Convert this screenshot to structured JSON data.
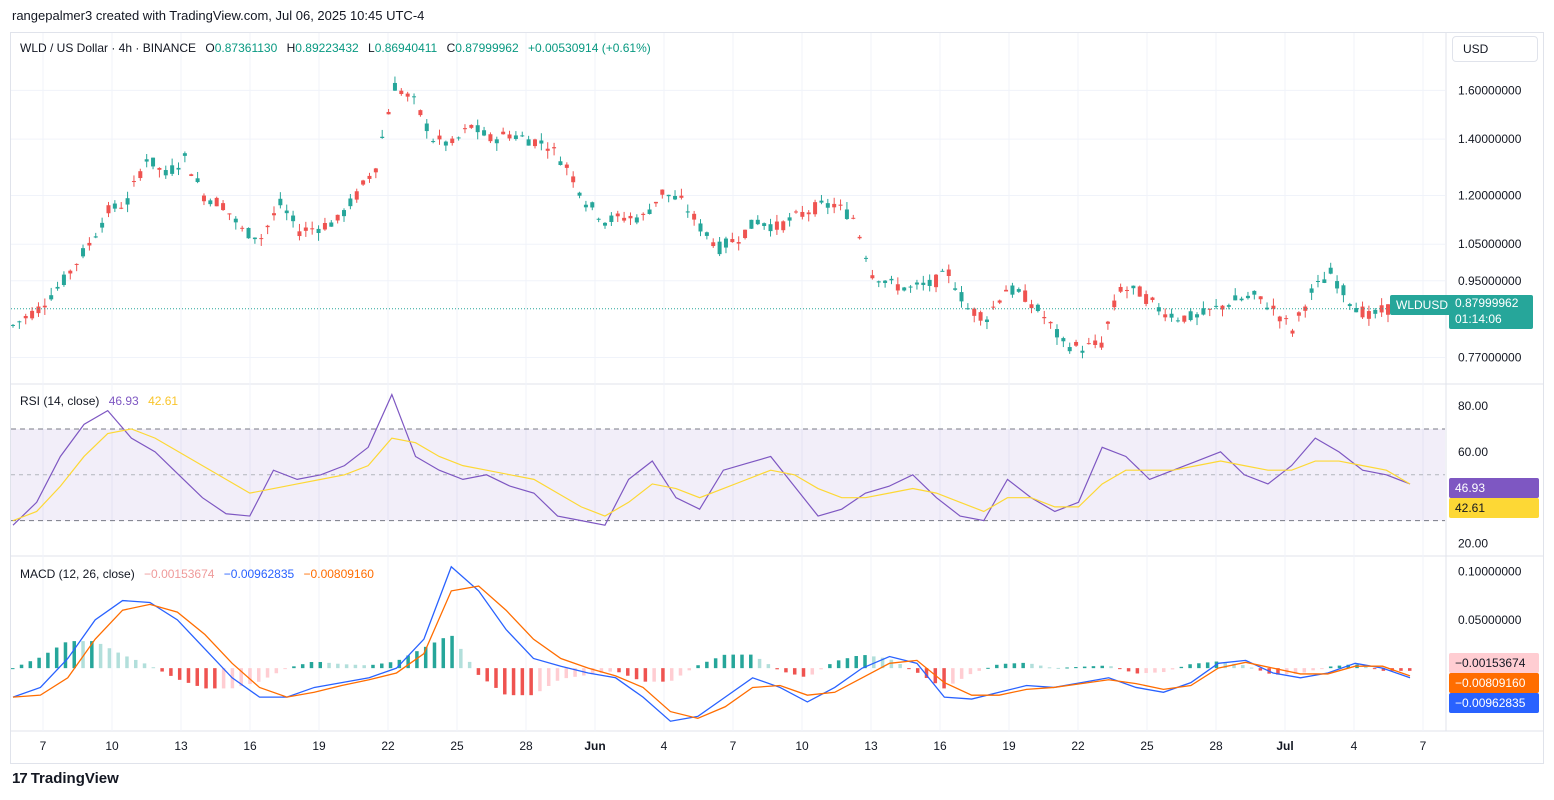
{
  "header": {
    "attribution": "rangepalmer3 created with TradingView.com, Jul 06, 2025 10:45 UTC-4"
  },
  "legend": {
    "symbol": "WLD / US Dollar · 4h · BINANCE",
    "o_label": "O",
    "o": "0.87361130",
    "h_label": "H",
    "h": "0.89223432",
    "l_label": "L",
    "l": "0.86940411",
    "c_label": "C",
    "c": "0.87999962",
    "change": "+0.00530914 (+0.61%)"
  },
  "currency_button": "USD",
  "price_tag": {
    "symbol": "WLDUSD",
    "price": "0.87999962",
    "countdown": "01:14:06"
  },
  "rsi_legend": {
    "label": "RSI (14, close)",
    "rsi": "46.93",
    "ma": "42.61"
  },
  "macd_legend": {
    "label": "MACD (12, 26, close)",
    "hist": "−0.00153674",
    "macd": "−0.00962835",
    "signal": "−0.00809160"
  },
  "rsi_tags": {
    "rsi": "46.93",
    "ma": "42.61"
  },
  "macd_tags": {
    "hist": "−0.00153674",
    "signal": "−0.00809160",
    "macd": "−0.00962835"
  },
  "footer": {
    "brand": "TradingView"
  },
  "colors": {
    "up": "#26a69a",
    "down": "#ef5350",
    "rsi": "#7e57c2",
    "rsi_ma": "#fdd835",
    "macd": "#2962ff",
    "signal": "#ff6d00",
    "hist_up": "#26a69a",
    "hist_up_light": "#b2dfdb",
    "hist_down": "#ef5350",
    "hist_down_light": "#ffcdd2"
  },
  "chart_data": [
    {
      "type": "candlestick",
      "title": "WLD / US Dollar · 4h · BINANCE",
      "x_tick_labels": [
        "7",
        "10",
        "13",
        "16",
        "19",
        "22",
        "25",
        "28",
        "Jun",
        "4",
        "7",
        "10",
        "13",
        "16",
        "19",
        "22",
        "25",
        "28",
        "Jul",
        "4",
        "7"
      ],
      "y_tick_labels": [
        "1.60000000",
        "1.40000000",
        "1.20000000",
        "1.05000000",
        "0.95000000",
        "0.77000000"
      ],
      "y_scale": "log",
      "y_range": [
        0.72,
        1.72
      ],
      "last_price": 0.87999962,
      "close_path": [
        {
          "x": 0,
          "y": 0.84
        },
        {
          "x": 4,
          "y": 0.88
        },
        {
          "x": 8,
          "y": 0.95
        },
        {
          "x": 12,
          "y": 1.05
        },
        {
          "x": 15,
          "y": 1.15
        },
        {
          "x": 18,
          "y": 1.18
        },
        {
          "x": 21,
          "y": 1.33
        },
        {
          "x": 24,
          "y": 1.27
        },
        {
          "x": 27,
          "y": 1.33
        },
        {
          "x": 30,
          "y": 1.2
        },
        {
          "x": 33,
          "y": 1.17
        },
        {
          "x": 36,
          "y": 1.09
        },
        {
          "x": 39,
          "y": 1.07
        },
        {
          "x": 42,
          "y": 1.17
        },
        {
          "x": 45,
          "y": 1.09
        },
        {
          "x": 48,
          "y": 1.1
        },
        {
          "x": 51,
          "y": 1.12
        },
        {
          "x": 54,
          "y": 1.2
        },
        {
          "x": 57,
          "y": 1.3
        },
        {
          "x": 60,
          "y": 1.62
        },
        {
          "x": 63,
          "y": 1.55
        },
        {
          "x": 66,
          "y": 1.4
        },
        {
          "x": 69,
          "y": 1.38
        },
        {
          "x": 72,
          "y": 1.45
        },
        {
          "x": 75,
          "y": 1.4
        },
        {
          "x": 78,
          "y": 1.42
        },
        {
          "x": 81,
          "y": 1.4
        },
        {
          "x": 84,
          "y": 1.38
        },
        {
          "x": 87,
          "y": 1.3
        },
        {
          "x": 90,
          "y": 1.18
        },
        {
          "x": 93,
          "y": 1.12
        },
        {
          "x": 96,
          "y": 1.13
        },
        {
          "x": 99,
          "y": 1.13
        },
        {
          "x": 102,
          "y": 1.21
        },
        {
          "x": 105,
          "y": 1.18
        },
        {
          "x": 108,
          "y": 1.1
        },
        {
          "x": 111,
          "y": 1.04
        },
        {
          "x": 114,
          "y": 1.07
        },
        {
          "x": 117,
          "y": 1.12
        },
        {
          "x": 120,
          "y": 1.1
        },
        {
          "x": 123,
          "y": 1.13
        },
        {
          "x": 126,
          "y": 1.16
        },
        {
          "x": 129,
          "y": 1.17
        },
        {
          "x": 132,
          "y": 1.13
        },
        {
          "x": 135,
          "y": 0.97
        },
        {
          "x": 138,
          "y": 0.94
        },
        {
          "x": 141,
          "y": 0.93
        },
        {
          "x": 144,
          "y": 0.94
        },
        {
          "x": 147,
          "y": 0.97
        },
        {
          "x": 150,
          "y": 0.88
        },
        {
          "x": 153,
          "y": 0.86
        },
        {
          "x": 156,
          "y": 0.93
        },
        {
          "x": 159,
          "y": 0.91
        },
        {
          "x": 162,
          "y": 0.86
        },
        {
          "x": 165,
          "y": 0.8
        },
        {
          "x": 168,
          "y": 0.79
        },
        {
          "x": 171,
          "y": 0.8
        },
        {
          "x": 174,
          "y": 0.93
        },
        {
          "x": 177,
          "y": 0.92
        },
        {
          "x": 180,
          "y": 0.88
        },
        {
          "x": 183,
          "y": 0.86
        },
        {
          "x": 186,
          "y": 0.86
        },
        {
          "x": 189,
          "y": 0.88
        },
        {
          "x": 192,
          "y": 0.9
        },
        {
          "x": 195,
          "y": 0.91
        },
        {
          "x": 198,
          "y": 0.88
        },
        {
          "x": 201,
          "y": 0.83
        },
        {
          "x": 204,
          "y": 0.92
        },
        {
          "x": 207,
          "y": 0.97
        },
        {
          "x": 210,
          "y": 0.9
        },
        {
          "x": 213,
          "y": 0.86
        },
        {
          "x": 216,
          "y": 0.88
        }
      ]
    },
    {
      "type": "line",
      "title": "RSI (14, close)",
      "y_tick_labels": [
        "80.00",
        "60.00",
        "20.00"
      ],
      "y_range": [
        15,
        87
      ],
      "bands": [
        70,
        30
      ],
      "series": [
        {
          "name": "RSI",
          "values": [
            28,
            38,
            58,
            72,
            78,
            66,
            60,
            50,
            40,
            33,
            32,
            52,
            48,
            50,
            54,
            62,
            85,
            58,
            52,
            48,
            50,
            45,
            42,
            32,
            30,
            28,
            48,
            56,
            40,
            35,
            52,
            55,
            58,
            45,
            32,
            35,
            42,
            45,
            50,
            40,
            32,
            30,
            48,
            40,
            34,
            38,
            62,
            58,
            48,
            52,
            56,
            60,
            50,
            46,
            54,
            66,
            60,
            52,
            50,
            46
          ]
        },
        {
          "name": "MA",
          "values": [
            30,
            34,
            45,
            58,
            68,
            70,
            66,
            60,
            54,
            48,
            42,
            44,
            46,
            48,
            50,
            54,
            66,
            64,
            58,
            54,
            52,
            50,
            48,
            42,
            36,
            32,
            38,
            46,
            44,
            40,
            44,
            48,
            52,
            50,
            44,
            40,
            40,
            42,
            44,
            42,
            38,
            34,
            40,
            40,
            36,
            36,
            46,
            52,
            52,
            52,
            54,
            56,
            54,
            52,
            52,
            56,
            56,
            54,
            52,
            46
          ]
        }
      ]
    },
    {
      "type": "line",
      "title": "MACD (12, 26, close)",
      "y_tick_labels": [
        "0.10000000",
        "0.05000000"
      ],
      "y_range": [
        -0.062,
        0.112
      ],
      "series": [
        {
          "name": "MACD",
          "values": [
            -0.03,
            -0.02,
            0.01,
            0.05,
            0.07,
            0.068,
            0.05,
            0.02,
            -0.01,
            -0.03,
            -0.03,
            -0.02,
            -0.015,
            -0.01,
            0.0,
            0.03,
            0.105,
            0.08,
            0.04,
            0.01,
            0.002,
            -0.005,
            -0.01,
            -0.03,
            -0.055,
            -0.05,
            -0.03,
            -0.01,
            -0.02,
            -0.035,
            -0.02,
            0.0,
            0.012,
            0.005,
            -0.03,
            -0.032,
            -0.025,
            -0.018,
            -0.02,
            -0.015,
            -0.01,
            -0.02,
            -0.025,
            -0.015,
            0.005,
            0.008,
            -0.005,
            -0.01,
            -0.005,
            0.005,
            0.0,
            -0.01
          ]
        },
        {
          "name": "Signal",
          "values": [
            -0.03,
            -0.028,
            -0.01,
            0.03,
            0.06,
            0.066,
            0.058,
            0.035,
            0.005,
            -0.02,
            -0.03,
            -0.025,
            -0.018,
            -0.012,
            -0.005,
            0.015,
            0.08,
            0.085,
            0.06,
            0.03,
            0.01,
            0.0,
            -0.008,
            -0.02,
            -0.045,
            -0.052,
            -0.04,
            -0.02,
            -0.018,
            -0.028,
            -0.025,
            -0.01,
            0.005,
            0.008,
            -0.015,
            -0.028,
            -0.028,
            -0.022,
            -0.02,
            -0.016,
            -0.012,
            -0.016,
            -0.022,
            -0.018,
            0.0,
            0.006,
            0.0,
            -0.006,
            -0.006,
            0.002,
            0.002,
            -0.008
          ]
        }
      ]
    }
  ]
}
